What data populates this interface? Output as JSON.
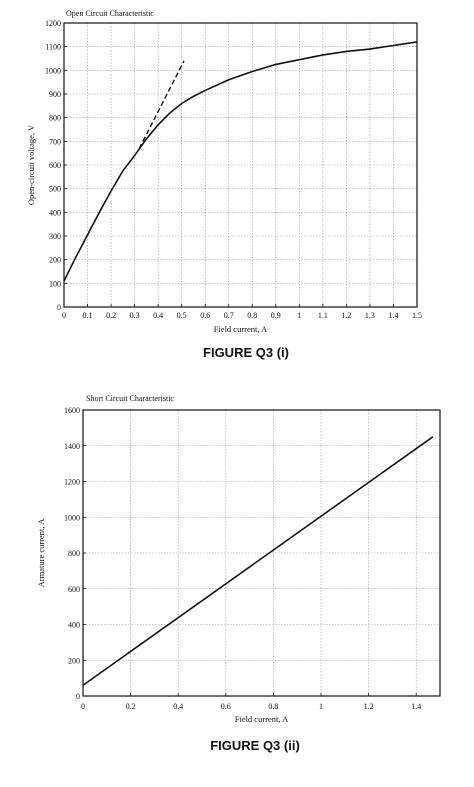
{
  "figures": [
    {
      "caption": "FIGURE Q3 (i)"
    },
    {
      "caption": "FIGURE Q3 (ii)"
    }
  ],
  "chart_data": [
    {
      "type": "line",
      "title": "Open Circuit Characteristic",
      "xlabel": "Field current, A",
      "ylabel": "Open-circuit voltage, V",
      "xlim": [
        0,
        1.5
      ],
      "ylim": [
        0,
        1200
      ],
      "xticks": [
        0,
        0.1,
        0.2,
        0.3,
        0.4,
        0.5,
        0.6,
        0.7,
        0.8,
        0.9,
        1,
        1.1,
        1.2,
        1.3,
        1.4,
        1.5
      ],
      "xtick_labels": [
        "0",
        "0.1",
        "0.2",
        "0.3",
        "0.4",
        "0.5",
        "0.6",
        "0.7",
        "0.8",
        "0.9",
        "1",
        "1.1",
        "1.2",
        "1.3",
        "1.4",
        "1.5"
      ],
      "yticks": [
        0,
        100,
        200,
        300,
        400,
        500,
        600,
        700,
        800,
        900,
        1000,
        1100,
        1200
      ],
      "ytick_labels": [
        "0",
        "100",
        "200",
        "300",
        "400",
        "500",
        "600",
        "700",
        "800",
        "900",
        "1000",
        "1100",
        "1200"
      ],
      "grid": true,
      "series": [
        {
          "style": "solid",
          "x": [
            0,
            0.05,
            0.1,
            0.15,
            0.2,
            0.25,
            0.3,
            0.35,
            0.4,
            0.45,
            0.5,
            0.55,
            0.6,
            0.7,
            0.8,
            0.9,
            1.0,
            1.1,
            1.2,
            1.3,
            1.4,
            1.5
          ],
          "y": [
            110,
            210,
            305,
            400,
            490,
            575,
            640,
            710,
            770,
            820,
            860,
            890,
            915,
            960,
            995,
            1025,
            1045,
            1065,
            1080,
            1090,
            1105,
            1120
          ]
        },
        {
          "style": "dashed",
          "x": [
            0.32,
            0.51
          ],
          "y": [
            670,
            1040
          ]
        }
      ]
    },
    {
      "type": "line",
      "title": "Short Circuit Characteristic",
      "xlabel": "Field current, A",
      "ylabel": "Armature current, A",
      "xlim": [
        0,
        1.5
      ],
      "ylim": [
        0,
        1600
      ],
      "xticks": [
        0,
        0.2,
        0.4,
        0.6,
        0.8,
        1,
        1.2,
        1.4
      ],
      "xtick_labels": [
        "0",
        "0.2",
        "0.4",
        "0.6",
        "0.8",
        "1",
        "1.2",
        "1.4"
      ],
      "yticks": [
        0,
        200,
        400,
        600,
        800,
        1000,
        1200,
        1400,
        1600
      ],
      "ytick_labels": [
        "0",
        "200",
        "400",
        "600",
        "800",
        "1000",
        "1200",
        "1400",
        "1600"
      ],
      "grid": true,
      "series": [
        {
          "style": "solid",
          "x": [
            0,
            1.47
          ],
          "y": [
            60,
            1450
          ]
        }
      ]
    }
  ]
}
